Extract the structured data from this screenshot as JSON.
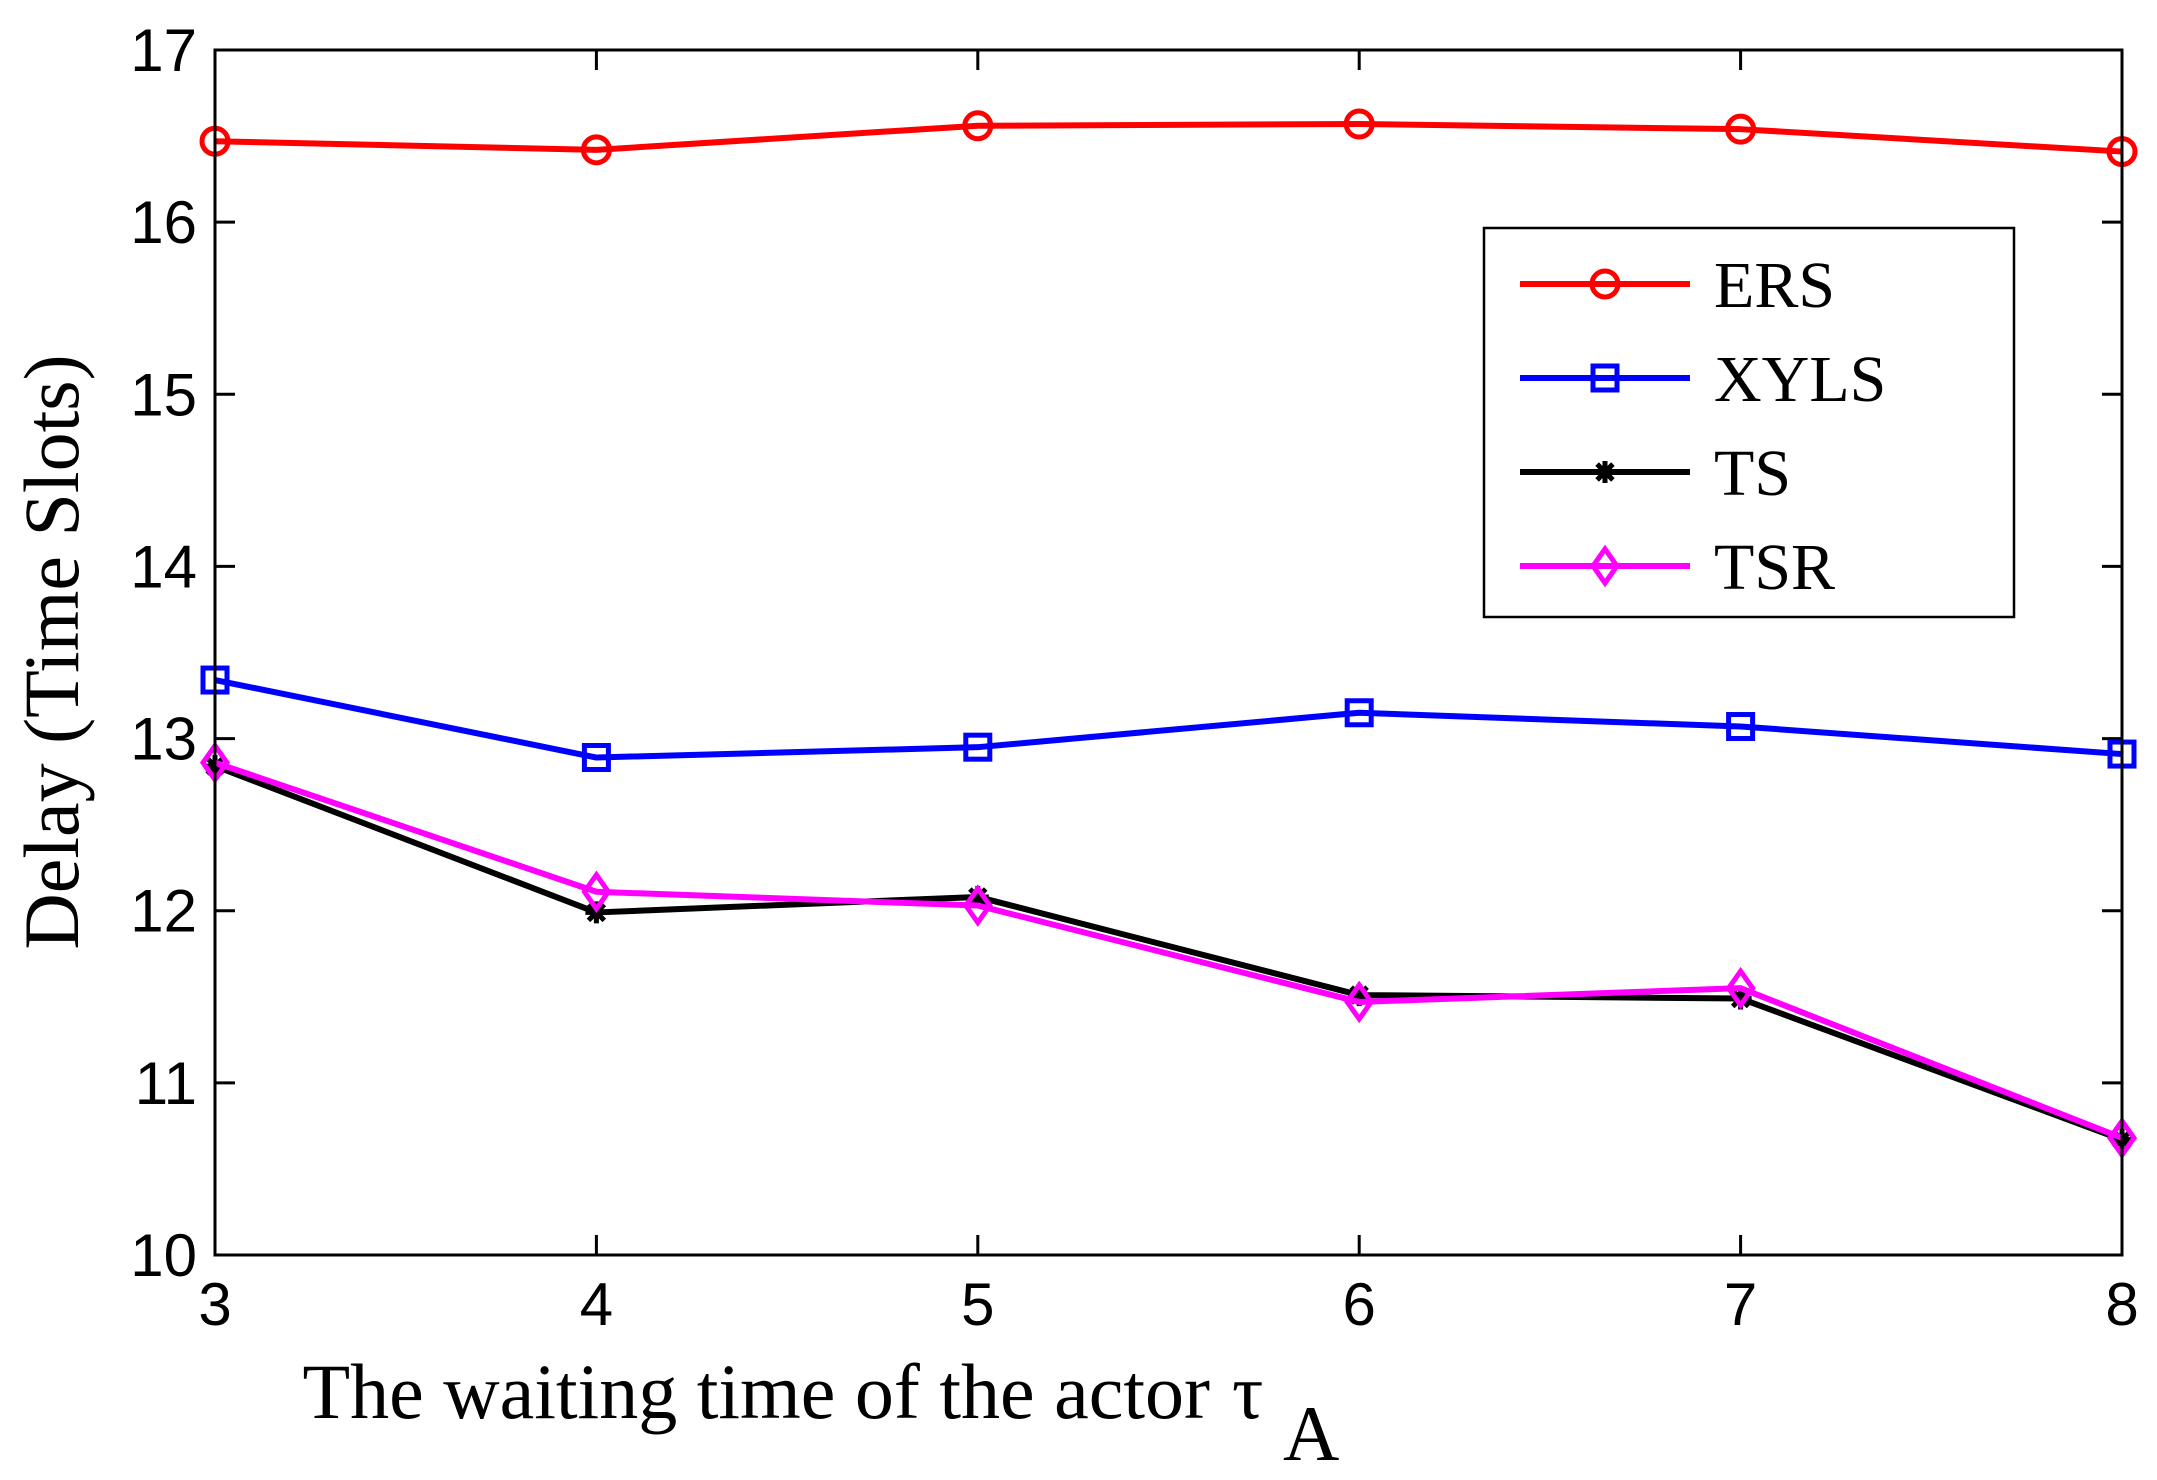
{
  "chart_data": {
    "type": "line",
    "title": "",
    "xlabel": "The waiting time of the actor",
    "xlabel_symbol": "τ",
    "xlabel_subscript": "A",
    "ylabel": "Delay (Time Slots)",
    "x": [
      3,
      4,
      5,
      6,
      7,
      8
    ],
    "xlim": [
      3,
      8
    ],
    "ylim": [
      10,
      17
    ],
    "xticks": [
      "3",
      "4",
      "5",
      "6",
      "7",
      "8"
    ],
    "yticks": [
      "10",
      "11",
      "12",
      "13",
      "14",
      "15",
      "16",
      "17"
    ],
    "grid": false,
    "legend_position": "top-right",
    "series": [
      {
        "name": "ERS",
        "color": "#ff0000",
        "marker": "circle",
        "values": [
          16.47,
          16.42,
          16.56,
          16.57,
          16.54,
          16.41
        ]
      },
      {
        "name": "XYLS",
        "color": "#0000ff",
        "marker": "square",
        "values": [
          13.34,
          12.89,
          12.95,
          13.15,
          13.07,
          12.91
        ]
      },
      {
        "name": "TS",
        "color": "#000000",
        "marker": "asterisk",
        "values": [
          12.84,
          11.99,
          12.08,
          11.51,
          11.49,
          10.67
        ]
      },
      {
        "name": "TSR",
        "color": "#ff00ff",
        "marker": "diamond",
        "values": [
          12.86,
          12.11,
          12.03,
          11.47,
          11.55,
          10.68
        ]
      }
    ]
  }
}
